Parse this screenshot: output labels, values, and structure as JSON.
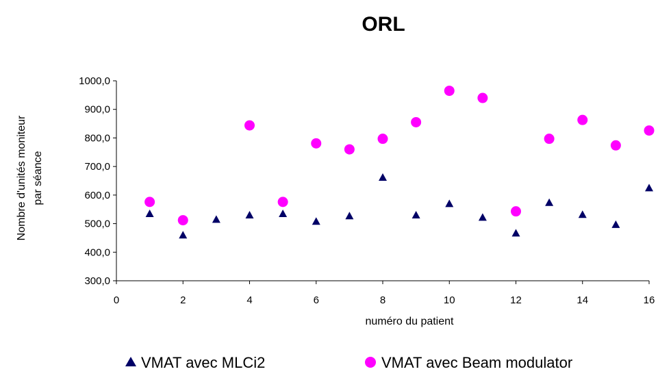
{
  "chart_data": {
    "type": "scatter",
    "title": "ORL",
    "xlabel": "numéro du patient",
    "ylabel_lines": [
      "Nombre d'unités moniteur",
      "par séance"
    ],
    "xlim": [
      0,
      16
    ],
    "ylim": [
      300,
      1000
    ],
    "x_ticks": [
      0,
      2,
      4,
      6,
      8,
      10,
      12,
      14,
      16
    ],
    "y_ticks": [
      300,
      400,
      500,
      600,
      700,
      800,
      900,
      1000
    ],
    "y_tick_labels": [
      "300,0",
      "400,0",
      "500,0",
      "600,0",
      "700,0",
      "800,0",
      "900,0",
      "1000,0"
    ],
    "grid": false,
    "legend_position": "bottom",
    "series": [
      {
        "name": "VMAT avec MLCi2",
        "marker": "triangle",
        "color": "#000066",
        "x": [
          1,
          2,
          3,
          4,
          5,
          6,
          7,
          8,
          9,
          10,
          11,
          12,
          13,
          14,
          15,
          16
        ],
        "y": [
          535,
          460,
          515,
          530,
          535,
          508,
          527,
          662,
          530,
          570,
          522,
          467,
          574,
          532,
          497,
          625
        ]
      },
      {
        "name": "VMAT avec Beam modulator",
        "marker": "circle",
        "color": "#ff00ff",
        "x": [
          1,
          2,
          4,
          5,
          6,
          7,
          8,
          9,
          10,
          11,
          12,
          13,
          14,
          15,
          16
        ],
        "y": [
          576,
          512,
          844,
          576,
          781,
          760,
          797,
          855,
          965,
          940,
          543,
          797,
          863,
          774,
          826
        ]
      }
    ]
  }
}
